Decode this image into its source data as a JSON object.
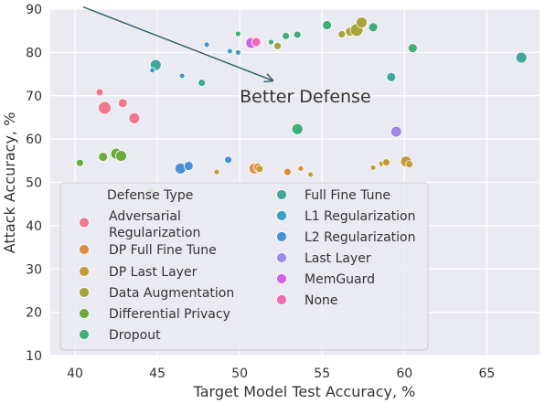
{
  "chart_data": {
    "type": "scatter",
    "title": "",
    "xlabel": "Target Model Test Accuracy, %",
    "ylabel": "Attack Accuracy, %",
    "xlim": [
      38.5,
      68.2
    ],
    "ylim": [
      10,
      90
    ],
    "xticks": [
      40,
      45,
      50,
      55,
      60,
      65
    ],
    "yticks": [
      10,
      20,
      30,
      40,
      50,
      60,
      70,
      80,
      90
    ],
    "grid": true,
    "background": "#eaeaf2",
    "legend": {
      "title": "Defense Type",
      "placement": "lower-left",
      "columns": 2
    },
    "annotation": {
      "text": "Better Defense",
      "arrow_from": [
        40.5,
        90.5
      ],
      "arrow_to": [
        52,
        73.5
      ],
      "text_at": [
        50,
        70
      ]
    },
    "series": [
      {
        "name": "Adversarial Regularization",
        "color": "#f0788c",
        "points": [
          [
            41.5,
            70.8,
            4
          ],
          [
            41.8,
            67.2,
            7
          ],
          [
            42.9,
            68.3,
            5
          ],
          [
            43.6,
            64.8,
            6
          ]
        ]
      },
      {
        "name": "DP Full Fine Tune",
        "color": "#e08a3c",
        "points": [
          [
            50.8,
            82.7,
            3
          ],
          [
            50.9,
            53.2,
            6
          ],
          [
            51.1,
            53.4,
            5
          ],
          [
            52.9,
            52.4,
            4
          ],
          [
            53.7,
            53.2,
            3
          ]
        ]
      },
      {
        "name": "DP Last Layer",
        "color": "#c49a3a",
        "points": [
          [
            48.6,
            52.4,
            3
          ],
          [
            51.2,
            53.1,
            4
          ],
          [
            54.3,
            51.8,
            3
          ],
          [
            58.1,
            53.4,
            3
          ],
          [
            58.6,
            54.3,
            3
          ],
          [
            58.9,
            54.6,
            4
          ],
          [
            60.1,
            54.8,
            6
          ],
          [
            60.3,
            54.2,
            4
          ]
        ]
      },
      {
        "name": "Data Augmentation",
        "color": "#a8a23a",
        "points": [
          [
            52.3,
            81.5,
            4
          ],
          [
            56.2,
            84.2,
            4
          ],
          [
            56.7,
            84.8,
            5
          ],
          [
            57.1,
            85.2,
            7
          ],
          [
            57.4,
            86.9,
            6
          ]
        ]
      },
      {
        "name": "Differential Privacy",
        "color": "#6aac3c",
        "points": [
          [
            40.3,
            54.5,
            4
          ],
          [
            41.7,
            55.9,
            5
          ],
          [
            42.5,
            56.6,
            6
          ],
          [
            42.8,
            56.1,
            6
          ],
          [
            44.6,
            47.9,
            4
          ]
        ]
      },
      {
        "name": "Dropout",
        "color": "#3fae7a",
        "points": [
          [
            49.9,
            84.3,
            3
          ],
          [
            51.9,
            82.4,
            3
          ],
          [
            52.8,
            83.8,
            4
          ],
          [
            53.5,
            84.1,
            4
          ],
          [
            53.5,
            62.3,
            6
          ],
          [
            55.3,
            86.3,
            5
          ],
          [
            58.1,
            85.8,
            5
          ],
          [
            60.5,
            81.0,
            5
          ]
        ]
      },
      {
        "name": "Full Fine Tune",
        "color": "#40a89a",
        "points": [
          [
            44.9,
            77.1,
            6
          ],
          [
            47.7,
            73.0,
            4
          ],
          [
            59.2,
            74.3,
            5
          ],
          [
            67.1,
            78.8,
            6
          ]
        ]
      },
      {
        "name": "L1 Regularization",
        "color": "#3c9ec4",
        "points": [
          [
            44.7,
            75.9,
            3
          ],
          [
            46.5,
            74.6,
            3
          ],
          [
            49.4,
            80.3,
            3
          ],
          [
            49.9,
            80.0,
            3
          ]
        ]
      },
      {
        "name": "L2 Regularization",
        "color": "#4a90d9",
        "points": [
          [
            48.0,
            81.8,
            3
          ],
          [
            46.4,
            53.2,
            6
          ],
          [
            46.9,
            53.8,
            5
          ],
          [
            49.3,
            55.2,
            4
          ]
        ]
      },
      {
        "name": "Last Layer",
        "color": "#a08ae6",
        "points": [
          [
            59.5,
            61.7,
            6
          ]
        ]
      },
      {
        "name": "MemGuard",
        "color": "#d45ee8",
        "points": [
          [
            50.7,
            82.2,
            6
          ]
        ]
      },
      {
        "name": "None",
        "color": "#f06ab4",
        "points": [
          [
            51.0,
            82.4,
            5
          ]
        ]
      }
    ]
  }
}
